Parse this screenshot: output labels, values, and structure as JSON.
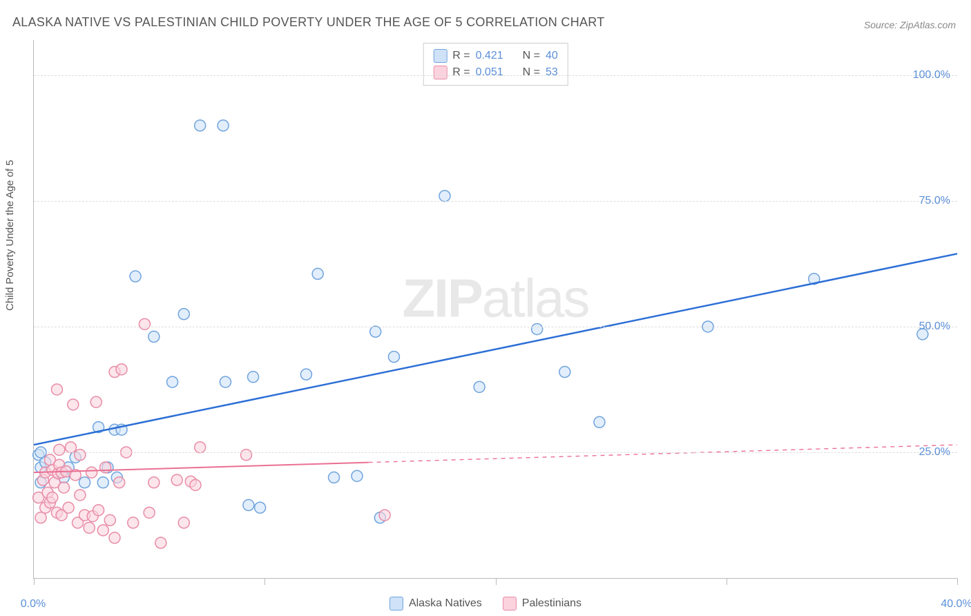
{
  "title": "ALASKA NATIVE VS PALESTINIAN CHILD POVERTY UNDER THE AGE OF 5 CORRELATION CHART",
  "source": "Source: ZipAtlas.com",
  "ylabel": "Child Poverty Under the Age of 5",
  "watermark_bold": "ZIP",
  "watermark_light": "atlas",
  "chart": {
    "type": "scatter",
    "xlim": [
      0,
      40
    ],
    "ylim": [
      0,
      107
    ],
    "xtick_positions": [
      0,
      10,
      20,
      30,
      40
    ],
    "xtick_labels": {
      "0": "0.0%",
      "40": "40.0%"
    },
    "ytick_positions": [
      25,
      50,
      75,
      100
    ],
    "ytick_labels": {
      "25": "25.0%",
      "50": "50.0%",
      "75": "75.0%",
      "100": "100.0%"
    },
    "background_color": "#ffffff",
    "grid_color": "#dddddd",
    "axis_color": "#bbbbbb",
    "tick_label_color": "#5a8fd8",
    "marker_radius": 8,
    "marker_stroke_width": 1.5,
    "series": [
      {
        "name": "Alaska Natives",
        "fill_color": "#cfe2f8",
        "stroke_color": "#6fa3dd",
        "fill_opacity": 0.6,
        "R": "0.421",
        "N": "40",
        "trend": {
          "x1": 0,
          "y1": 26.5,
          "x2": 40,
          "y2": 64.5,
          "solid_until_x": 40,
          "color": "#2c6fd6",
          "width": 2.5
        },
        "points": [
          [
            0.2,
            24.5
          ],
          [
            0.3,
            22
          ],
          [
            0.3,
            25
          ],
          [
            0.3,
            19
          ],
          [
            0.5,
            23
          ],
          [
            1.3,
            20
          ],
          [
            1.5,
            22
          ],
          [
            1.8,
            24
          ],
          [
            2.2,
            19
          ],
          [
            2.8,
            30
          ],
          [
            3.0,
            19
          ],
          [
            3.2,
            22
          ],
          [
            3.5,
            29.5
          ],
          [
            3.6,
            20
          ],
          [
            3.8,
            29.5
          ],
          [
            4.4,
            60
          ],
          [
            5.2,
            48
          ],
          [
            6.0,
            39
          ],
          [
            6.5,
            52.5
          ],
          [
            7.2,
            90
          ],
          [
            8.2,
            90
          ],
          [
            8.3,
            39
          ],
          [
            9.3,
            14.5
          ],
          [
            9.5,
            40
          ],
          [
            9.8,
            14
          ],
          [
            11.8,
            40.5
          ],
          [
            12.3,
            60.5
          ],
          [
            13.0,
            20
          ],
          [
            14.0,
            20.3
          ],
          [
            14.8,
            49
          ],
          [
            15.0,
            12
          ],
          [
            15.6,
            44
          ],
          [
            17.8,
            76
          ],
          [
            19.3,
            38
          ],
          [
            21.8,
            49.5
          ],
          [
            23.0,
            41
          ],
          [
            24.5,
            31
          ],
          [
            29.2,
            50
          ],
          [
            33.8,
            59.5
          ],
          [
            38.5,
            48.5
          ]
        ]
      },
      {
        "name": "Palestinians",
        "fill_color": "#fad3de",
        "stroke_color": "#e88ba6",
        "fill_opacity": 0.6,
        "R": "0.051",
        "N": "53",
        "trend": {
          "x1": 0,
          "y1": 21,
          "x2": 40,
          "y2": 26.5,
          "solid_until_x": 14.5,
          "color": "#ea6f93",
          "width": 2
        },
        "points": [
          [
            0.2,
            16
          ],
          [
            0.3,
            12
          ],
          [
            0.4,
            19.5
          ],
          [
            0.5,
            21
          ],
          [
            0.5,
            14
          ],
          [
            0.6,
            17
          ],
          [
            0.7,
            15
          ],
          [
            0.7,
            23.5
          ],
          [
            0.8,
            21.5
          ],
          [
            0.8,
            16
          ],
          [
            0.9,
            19
          ],
          [
            1.0,
            37.5
          ],
          [
            1.0,
            13
          ],
          [
            1.05,
            20.8
          ],
          [
            1.1,
            22.5
          ],
          [
            1.1,
            25.5
          ],
          [
            1.2,
            21
          ],
          [
            1.2,
            12.5
          ],
          [
            1.3,
            18
          ],
          [
            1.4,
            21.2
          ],
          [
            1.5,
            14
          ],
          [
            1.6,
            26
          ],
          [
            1.7,
            34.5
          ],
          [
            1.8,
            20.5
          ],
          [
            1.9,
            11
          ],
          [
            2.0,
            24.5
          ],
          [
            2.0,
            16.5
          ],
          [
            2.2,
            12.5
          ],
          [
            2.4,
            10
          ],
          [
            2.5,
            21
          ],
          [
            2.55,
            12.3
          ],
          [
            2.7,
            35
          ],
          [
            2.8,
            13.5
          ],
          [
            3.0,
            9.5
          ],
          [
            3.1,
            22
          ],
          [
            3.3,
            11.5
          ],
          [
            3.5,
            8
          ],
          [
            3.5,
            41
          ],
          [
            3.7,
            19
          ],
          [
            3.8,
            41.5
          ],
          [
            4.0,
            25
          ],
          [
            4.3,
            11
          ],
          [
            4.8,
            50.5
          ],
          [
            5.0,
            13
          ],
          [
            5.2,
            19
          ],
          [
            5.5,
            7
          ],
          [
            6.2,
            19.5
          ],
          [
            6.5,
            11
          ],
          [
            6.8,
            19.2
          ],
          [
            7.0,
            18.5
          ],
          [
            7.2,
            26
          ],
          [
            9.2,
            24.5
          ],
          [
            15.2,
            12.5
          ]
        ]
      }
    ]
  },
  "legend_top": {
    "r_label": "R =",
    "n_label": "N ="
  },
  "legend_bottom": {
    "items": [
      "Alaska Natives",
      "Palestinians"
    ]
  }
}
